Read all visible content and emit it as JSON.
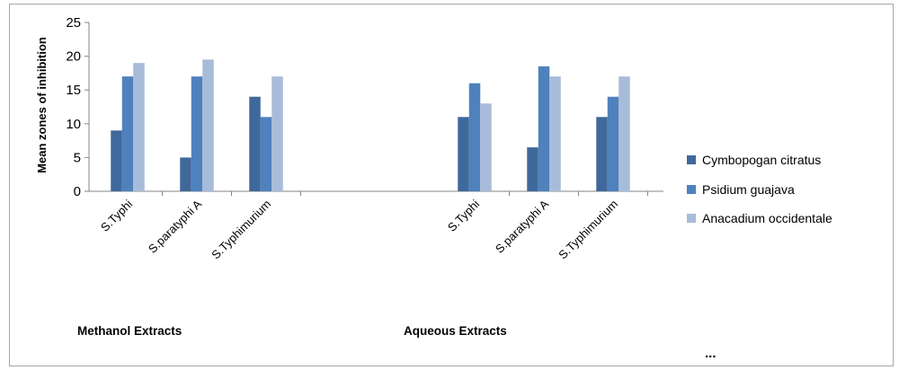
{
  "chart_data": {
    "type": "bar",
    "ylabel": "Mean zones of inhibition",
    "ylim": [
      0,
      25
    ],
    "yticks": [
      "0",
      "5",
      "10",
      "15",
      "20",
      "25"
    ],
    "grid": false,
    "legend_position": "right",
    "groups": [
      {
        "label": "Methanol Extracts",
        "categories": [
          "S.Typhi",
          "S.paratyphi A",
          "S.Typhimurium"
        ]
      },
      {
        "label": "Aqueous Extracts",
        "categories": [
          "S.Typhi",
          "S.paratyphi A",
          "S.Typhimurium"
        ]
      }
    ],
    "categories": [
      "S.Typhi",
      "S.paratyphi A",
      "S.Typhimurium",
      "S.Typhi",
      "S.paratyphi A",
      "S.Typhimurium"
    ],
    "series": [
      {
        "name": "Cymbopogan citratus",
        "color": "#3f689b",
        "values": [
          9,
          5,
          14,
          11,
          6.5,
          11
        ]
      },
      {
        "name": "Psidium guajava",
        "color": "#4f81bd",
        "values": [
          17,
          17,
          11,
          16,
          18.5,
          14
        ]
      },
      {
        "name": "Anacadium occidentale",
        "color": "#a8bcda",
        "values": [
          19,
          19.5,
          17,
          13,
          17,
          17
        ]
      }
    ],
    "footnote": "..."
  }
}
